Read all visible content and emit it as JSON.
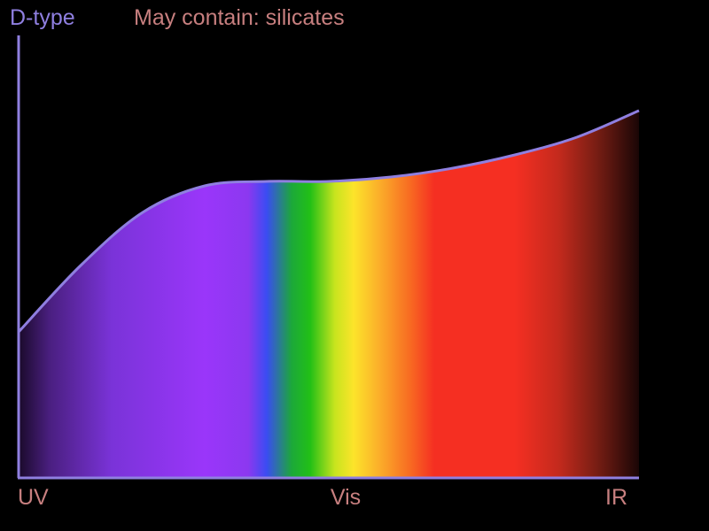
{
  "chart_data": {
    "type": "area",
    "title": "D-type",
    "subtitle": "May contain: silicates",
    "xlabel": "",
    "ylabel": "",
    "x_ticks": [
      "UV",
      "Vis",
      "IR"
    ],
    "grid": false,
    "legend": "none",
    "series": [
      {
        "values": [
          {
            "x": 0.0,
            "y": 0.33
          },
          {
            "x": 0.1,
            "y": 0.48
          },
          {
            "x": 0.2,
            "y": 0.6
          },
          {
            "x": 0.3,
            "y": 0.66
          },
          {
            "x": 0.4,
            "y": 0.67
          },
          {
            "x": 0.5,
            "y": 0.67
          },
          {
            "x": 0.6,
            "y": 0.68
          },
          {
            "x": 0.7,
            "y": 0.7
          },
          {
            "x": 0.8,
            "y": 0.73
          },
          {
            "x": 0.9,
            "y": 0.77
          },
          {
            "x": 1.0,
            "y": 0.83
          }
        ]
      }
    ],
    "xlim": [
      0,
      1
    ],
    "ylim": [
      0,
      1
    ]
  },
  "colors": {
    "background": "#000000",
    "axis": "#8f7fe0",
    "title": "#8f7fe0",
    "subtitle": "#c77f7f",
    "tick_labels": "#c77f7f",
    "curve": "#8f7fe0",
    "spectrum": [
      {
        "x": 0.0,
        "color": "#1a0a2a"
      },
      {
        "x": 0.05,
        "color": "#4a1f80"
      },
      {
        "x": 0.15,
        "color": "#7a33d8"
      },
      {
        "x": 0.3,
        "color": "#9a36fa"
      },
      {
        "x": 0.37,
        "color": "#8c38f0"
      },
      {
        "x": 0.4,
        "color": "#3a4cf2"
      },
      {
        "x": 0.44,
        "color": "#1ca83a"
      },
      {
        "x": 0.47,
        "color": "#22c016"
      },
      {
        "x": 0.51,
        "color": "#c8e41e"
      },
      {
        "x": 0.54,
        "color": "#fce42a"
      },
      {
        "x": 0.58,
        "color": "#fbb02a"
      },
      {
        "x": 0.63,
        "color": "#f86c22"
      },
      {
        "x": 0.67,
        "color": "#f52f22"
      },
      {
        "x": 0.8,
        "color": "#f52f22"
      },
      {
        "x": 0.87,
        "color": "#c42a1d"
      },
      {
        "x": 0.93,
        "color": "#7a1e14"
      },
      {
        "x": 1.0,
        "color": "#1a0606"
      }
    ]
  }
}
